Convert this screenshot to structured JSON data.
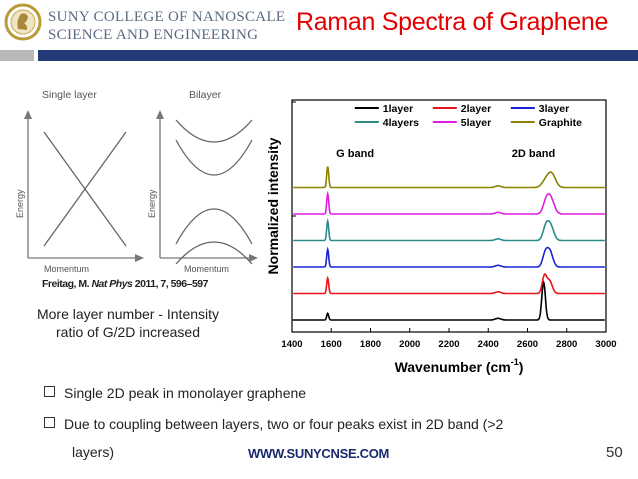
{
  "header": {
    "logo_line1": "SUNY COLLEGE OF NANOSCALE",
    "logo_line2": "SCIENCE AND ENGINEERING",
    "title": "Raman Spectra of Graphene",
    "band_grey": "#b9b9b9",
    "band_blue": "#243a79"
  },
  "diagram": {
    "left_title": "Single layer",
    "right_title": "Bilayer",
    "energy_label": "Energy",
    "momentum_label": "Momentum",
    "citation_author": "Freitag, M.",
    "citation_journal": "Nat Phys",
    "citation_rest": "2011, 7, 596–597"
  },
  "caption": "More layer number - Intensity ratio of G/2D increased",
  "bullets": [
    "Single 2D peak in monolayer graphene",
    "Due to coupling between layers, two or four peaks exist in 2D band (>2",
    "layers)"
  ],
  "footer": {
    "url": "WWW.SUNYCNSE.COM",
    "page_number": "50"
  },
  "chart_data": {
    "type": "line",
    "title": "",
    "xlabel": "Wavenumber (cm⁻¹)",
    "xlabel_base": "Wavenumber (cm",
    "xlabel_sup": "-1",
    "xlabel_end": ")",
    "ylabel": "Normalized intensity",
    "xlim": [
      1400,
      3000
    ],
    "xticks": [
      1400,
      1600,
      1800,
      2000,
      2200,
      2400,
      2600,
      2800,
      3000
    ],
    "y_ticklabels": "none",
    "annotations": [
      {
        "text": "G band",
        "x": 1625
      },
      {
        "text": "2D band",
        "x": 2520
      }
    ],
    "legend_position": "top-center",
    "series": [
      {
        "name": "1layer",
        "color": "#000000",
        "offset": 0,
        "g_height": 0.3,
        "peaks_2d": [
          [
            2682,
            1.0,
            9
          ]
        ]
      },
      {
        "name": "2layer",
        "color": "#e8141b",
        "offset": 1.0,
        "g_height": 0.7,
        "peaks_2d": [
          [
            2686,
            0.6,
            11
          ],
          [
            2712,
            0.45,
            14
          ]
        ]
      },
      {
        "name": "3layer",
        "color": "#1a22d6",
        "offset": 2.0,
        "g_height": 0.8,
        "peaks_2d": [
          [
            2690,
            0.45,
            13
          ],
          [
            2714,
            0.55,
            15
          ]
        ]
      },
      {
        "name": "4layers",
        "color": "#2c8a8a",
        "offset": 3.0,
        "g_height": 0.88,
        "peaks_2d": [
          [
            2692,
            0.4,
            14
          ],
          [
            2716,
            0.55,
            17
          ]
        ]
      },
      {
        "name": "5layer",
        "color": "#e01ee0",
        "offset": 4.0,
        "g_height": 0.92,
        "peaks_2d": [
          [
            2694,
            0.38,
            15
          ],
          [
            2718,
            0.55,
            18
          ]
        ]
      },
      {
        "name": "Graphite",
        "color": "#8c8200",
        "offset": 5.0,
        "g_height": 0.95,
        "peaks_2d": [
          [
            2690,
            0.2,
            18
          ],
          [
            2722,
            0.5,
            20
          ]
        ]
      }
    ]
  }
}
